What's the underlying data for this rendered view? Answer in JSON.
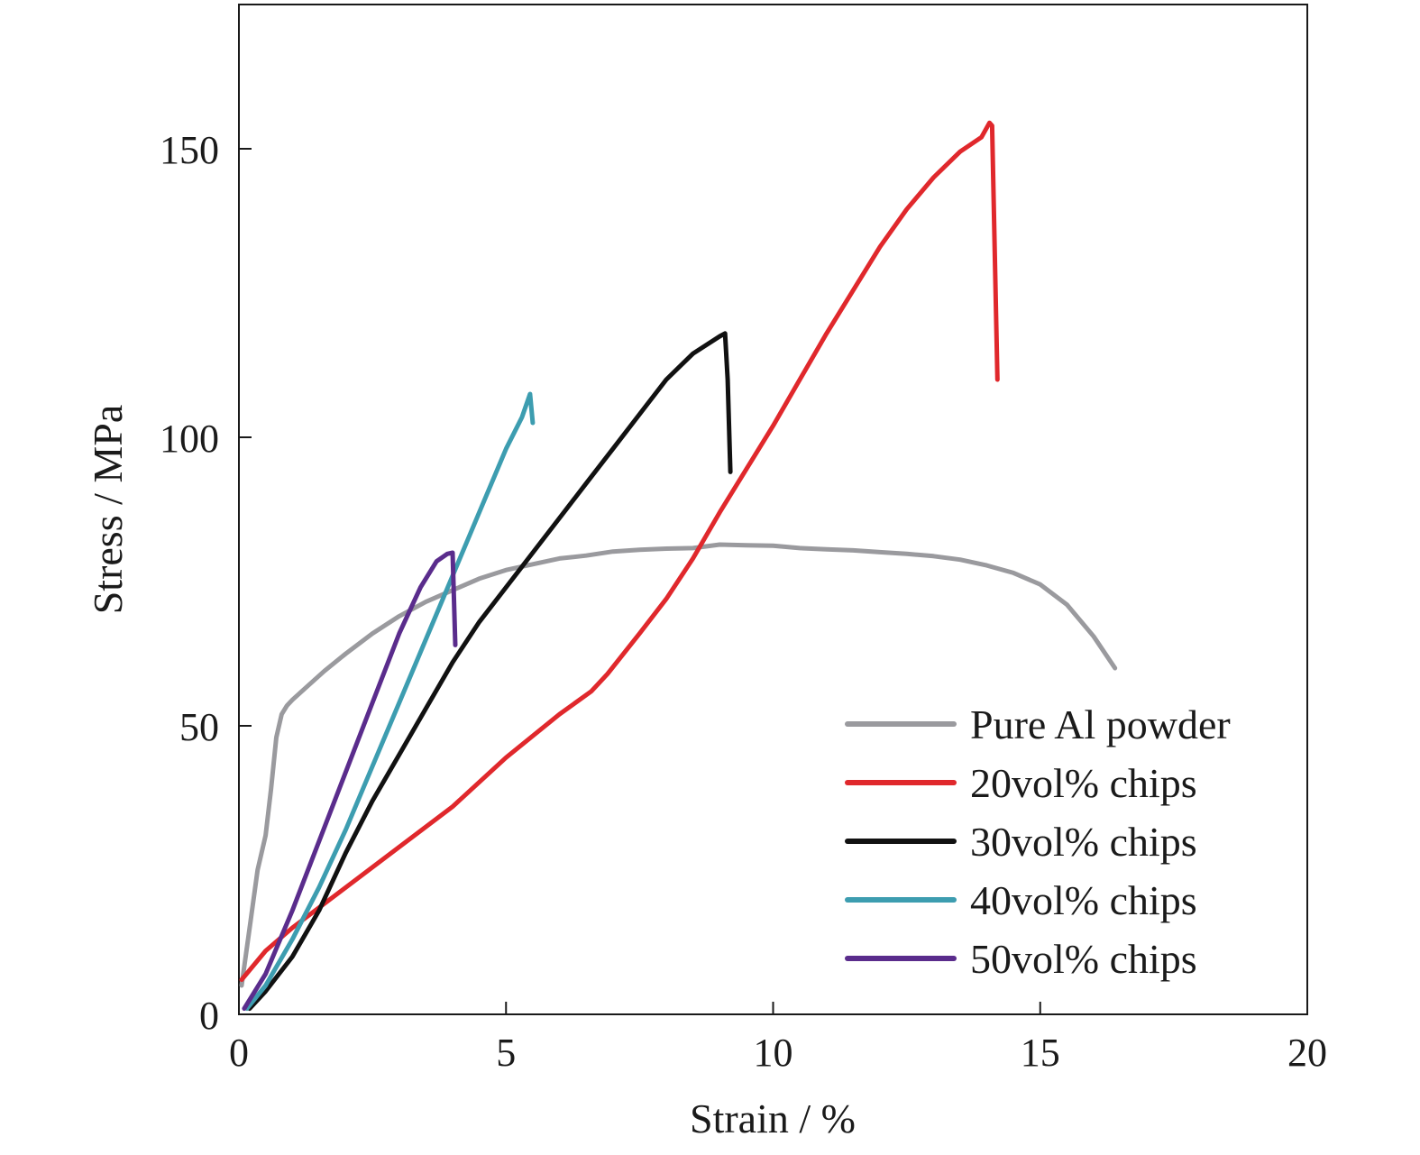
{
  "chart_data": {
    "type": "line",
    "xlabel": "Strain / %",
    "ylabel": "Stress / MPa",
    "xlim": [
      0,
      20
    ],
    "ylim": [
      0,
      175
    ],
    "xticks": [
      0,
      5,
      10,
      15,
      20
    ],
    "yticks": [
      0,
      50,
      100,
      150
    ],
    "grid": false,
    "legend_position": "bottom-right",
    "series": [
      {
        "name": "Pure Al powder",
        "color": "#9a9a9e",
        "x": [
          0.05,
          0.2,
          0.35,
          0.5,
          0.6,
          0.7,
          0.8,
          0.9,
          1.0,
          1.3,
          1.6,
          2.0,
          2.5,
          3.0,
          3.5,
          4.0,
          4.5,
          5.0,
          5.5,
          6.0,
          6.5,
          7.0,
          7.5,
          8.0,
          8.5,
          9.0,
          9.5,
          10.0,
          10.5,
          11.0,
          11.5,
          12.0,
          12.5,
          13.0,
          13.5,
          14.0,
          14.5,
          15.0,
          15.5,
          16.0,
          16.4
        ],
        "y": [
          5,
          15,
          25,
          31,
          39,
          48,
          52,
          53.5,
          54.5,
          57,
          59.5,
          62.5,
          66,
          69,
          71.5,
          73.5,
          75.5,
          77,
          78,
          79,
          79.5,
          80.2,
          80.5,
          80.7,
          80.8,
          81.4,
          81.3,
          81.2,
          80.8,
          80.6,
          80.4,
          80.1,
          79.8,
          79.4,
          78.8,
          77.8,
          76.5,
          74.5,
          71,
          65.5,
          60
        ]
      },
      {
        "name": "20vol% chips",
        "color": "#e0282c",
        "x": [
          0.05,
          0.5,
          1.0,
          1.5,
          2.0,
          3.0,
          4.0,
          5.0,
          6.0,
          6.6,
          6.9,
          7.5,
          8.0,
          8.5,
          9.0,
          9.5,
          10.0,
          10.5,
          11.0,
          11.5,
          12.0,
          12.5,
          13.0,
          13.5,
          13.9,
          14.05,
          14.1,
          14.2
        ],
        "y": [
          6,
          11,
          15,
          18.5,
          22,
          29,
          36,
          44.5,
          52,
          56,
          59,
          66,
          72,
          79,
          87,
          94.5,
          102,
          110,
          118,
          125.5,
          133,
          139.5,
          145,
          149.5,
          152,
          154.5,
          154,
          110
        ]
      },
      {
        "name": "30vol% chips",
        "color": "#111111",
        "x": [
          0.2,
          0.5,
          1.0,
          1.5,
          2.0,
          2.5,
          3.0,
          3.5,
          4.0,
          4.5,
          5.0,
          5.5,
          6.0,
          6.5,
          7.0,
          7.5,
          8.0,
          8.5,
          9.0,
          9.1,
          9.15,
          9.2
        ],
        "y": [
          1,
          4,
          10,
          18,
          28,
          37,
          45,
          53,
          61,
          68,
          74,
          80,
          86,
          92,
          98,
          104,
          110,
          114.5,
          117.5,
          118,
          110,
          94
        ]
      },
      {
        "name": "40vol% chips",
        "color": "#3d9db0",
        "x": [
          0.15,
          0.5,
          1.0,
          1.5,
          2.0,
          2.5,
          3.0,
          3.5,
          4.0,
          4.5,
          5.0,
          5.3,
          5.45,
          5.5
        ],
        "y": [
          1,
          5,
          13,
          22,
          32,
          43,
          54,
          65,
          76,
          87,
          98,
          103.5,
          107.5,
          102.5
        ]
      },
      {
        "name": "50vol% chips",
        "color": "#5a2c8c",
        "x": [
          0.1,
          0.5,
          1.0,
          1.5,
          2.0,
          2.5,
          3.0,
          3.4,
          3.7,
          3.9,
          4.0,
          4.05
        ],
        "y": [
          1,
          7,
          18,
          30,
          42,
          54,
          66,
          74,
          78.5,
          79.8,
          80,
          64
        ]
      }
    ]
  }
}
